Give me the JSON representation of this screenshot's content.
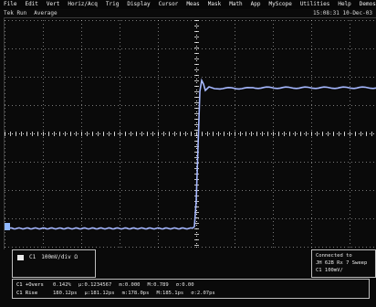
{
  "menu": {
    "items": [
      "File",
      "Edit",
      "Vert",
      "Horiz/Acq",
      "Trig",
      "Display",
      "Cursor",
      "Meas",
      "Mask",
      "Math",
      "App",
      "MyScope",
      "Utilities",
      "Help",
      "Demos"
    ]
  },
  "toolbar": {
    "items": [
      "Tek Run",
      "Average"
    ],
    "datetime": "15:08:31 10-Dec-03"
  },
  "scope": {
    "trace_color": "#a6b8ff",
    "grid_color": "#ffffff"
  },
  "status": {
    "ch1_label": "C1",
    "ch1_scale": "100mV/div  Ω",
    "right_lines": [
      "Connected to",
      "JH 62B Rx 7 Sweep",
      "C1  100mV/"
    ]
  },
  "measurements": {
    "rows": [
      {
        "label": "C1 +Overs",
        "value": "0.142%",
        "mu": "µ:0.1234567",
        "min": "m:0.000",
        "max": "M:0.789",
        "sd": "σ:0.00"
      },
      {
        "label": "C1 Rise",
        "value": "180.12ps",
        "mu": "µ:181.12ps",
        "min": "m:178.0ps",
        "max": "M:185.1ps",
        "sd": "σ:2.07ps"
      }
    ]
  }
}
